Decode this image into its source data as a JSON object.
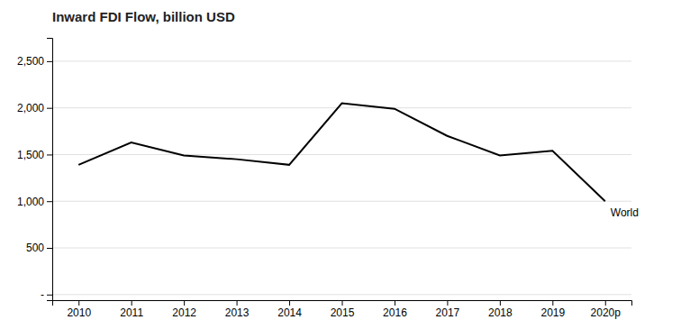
{
  "chart_data": {
    "type": "line",
    "title": "Inward FDI Flow, billion USD",
    "categories": [
      "2010",
      "2011",
      "2012",
      "2013",
      "2014",
      "2015",
      "2016",
      "2017",
      "2018",
      "2019",
      "2020p"
    ],
    "series": [
      {
        "name": "World",
        "color": "#000000",
        "values": [
          1390,
          1630,
          1490,
          1450,
          1390,
          2050,
          1990,
          1700,
          1490,
          1540,
          1000
        ]
      }
    ],
    "ylim": [
      -60,
      2750
    ],
    "yticks": [
      {
        "value": 0,
        "label": "-"
      },
      500,
      {
        "value": 1000,
        "label": "1,000"
      },
      {
        "value": 1500,
        "label": "1,500"
      },
      {
        "value": 2000,
        "label": "2,000"
      },
      {
        "value": 2500,
        "label": "2,500"
      }
    ],
    "grid": true
  }
}
